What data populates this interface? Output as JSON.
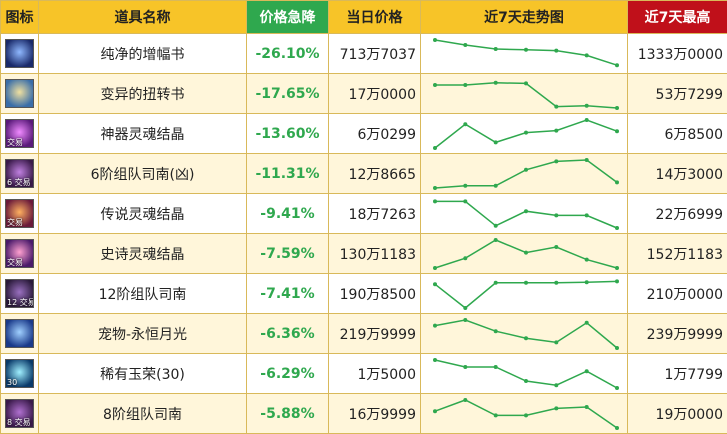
{
  "header": {
    "icon": "图标",
    "name": "道具名称",
    "drop": "价格急降",
    "price": "当日价格",
    "trend": "近7天走势图",
    "max": "近7天最高"
  },
  "colors": {
    "header_bg": "#f7c428",
    "drop_header_bg": "#2fa84e",
    "max_header_bg": "#c0101a",
    "drop_text": "#2fa84e",
    "trend_line": "#2fa84e"
  },
  "rows": [
    {
      "icon": "book-blue-icon",
      "icon_colors": [
        "#1a2a6a",
        "#8fb8ff"
      ],
      "tag": "",
      "name": "纯净的增幅书",
      "drop": "-26.10%",
      "price": "713万7037",
      "max": "1333万0000",
      "trend": [
        1.0,
        0.82,
        0.68,
        0.65,
        0.62,
        0.45,
        0.1
      ]
    },
    {
      "icon": "book-open-icon",
      "icon_colors": [
        "#3a6ea8",
        "#f0e0a0"
      ],
      "tag": "",
      "name": "变异的扭转书",
      "drop": "-17.65%",
      "price": "17万0000",
      "max": "53万7299",
      "trend": [
        0.82,
        0.82,
        0.9,
        0.88,
        0.05,
        0.08,
        0.0
      ]
    },
    {
      "icon": "crystal-purple-icon",
      "icon_colors": [
        "#5a1a7a",
        "#f08aff"
      ],
      "tag": "交易",
      "name": "神器灵魂结晶",
      "drop": "-13.60%",
      "price": "6万0299",
      "max": "6万8500",
      "trend": [
        0.0,
        0.85,
        0.2,
        0.55,
        0.62,
        1.0,
        0.6
      ]
    },
    {
      "icon": "orb-purple-icon",
      "icon_colors": [
        "#3a1a4a",
        "#c080e0"
      ],
      "tag": "6 交易",
      "name": "6阶组队司南(凶)",
      "drop": "-11.31%",
      "price": "12万8665",
      "max": "14万3000",
      "trend": [
        0.0,
        0.08,
        0.08,
        0.65,
        0.95,
        1.0,
        0.2
      ]
    },
    {
      "icon": "crystal-orange-icon",
      "icon_colors": [
        "#6a1a3a",
        "#ffb060"
      ],
      "tag": "交易",
      "name": "传说灵魂结晶",
      "drop": "-9.41%",
      "price": "18万7263",
      "max": "22万6999",
      "trend": [
        0.95,
        0.95,
        0.08,
        0.6,
        0.45,
        0.45,
        0.0
      ]
    },
    {
      "icon": "crystal-pink-icon",
      "icon_colors": [
        "#4a1a6a",
        "#ffa0d0"
      ],
      "tag": "交易",
      "name": "史诗灵魂结晶",
      "drop": "-7.59%",
      "price": "130万1183",
      "max": "152万1183",
      "trend": [
        0.0,
        0.35,
        1.0,
        0.55,
        0.75,
        0.3,
        0.0
      ]
    },
    {
      "icon": "orb-dark-icon",
      "icon_colors": [
        "#2a1a3a",
        "#9a70c0"
      ],
      "tag": "12 交易",
      "name": "12阶组队司南",
      "drop": "-7.41%",
      "price": "190万8500",
      "max": "210万0000",
      "trend": [
        0.85,
        0.0,
        0.9,
        0.9,
        0.9,
        0.92,
        0.95
      ]
    },
    {
      "icon": "moon-blue-icon",
      "icon_colors": [
        "#1a3a8a",
        "#a0d0ff"
      ],
      "tag": "",
      "name": "宠物-永恒月光",
      "drop": "-6.36%",
      "price": "219万9999",
      "max": "239万9999",
      "trend": [
        0.8,
        1.0,
        0.6,
        0.35,
        0.2,
        0.9,
        0.0
      ]
    },
    {
      "icon": "gem-cyan-icon",
      "icon_colors": [
        "#0a3a6a",
        "#a0f0ff"
      ],
      "tag": "30",
      "name": "稀有玉荣(30)",
      "drop": "-6.29%",
      "price": "1万5000",
      "max": "1万7799",
      "trend": [
        1.0,
        0.75,
        0.75,
        0.25,
        0.1,
        0.6,
        0.0
      ]
    },
    {
      "icon": "orb-violet-icon",
      "icon_colors": [
        "#3a1a4a",
        "#b070d0"
      ],
      "tag": "8 交易",
      "name": "8阶组队司南",
      "drop": "-5.88%",
      "price": "16万9999",
      "max": "19万0000",
      "trend": [
        0.6,
        1.0,
        0.45,
        0.45,
        0.7,
        0.75,
        0.0
      ]
    }
  ]
}
